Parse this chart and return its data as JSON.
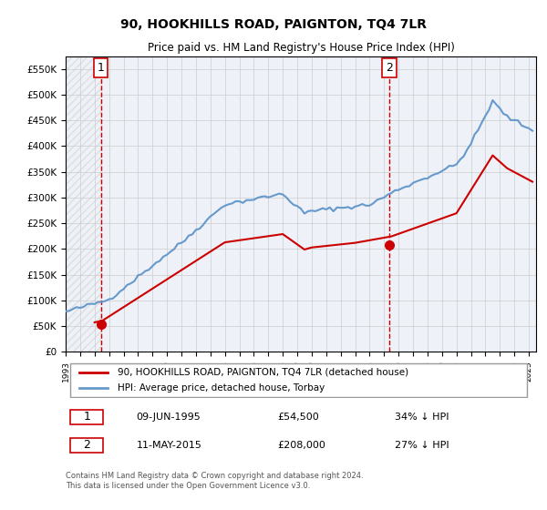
{
  "title": "90, HOOKHILLS ROAD, PAIGNTON, TQ4 7LR",
  "subtitle": "Price paid vs. HM Land Registry's House Price Index (HPI)",
  "legend_line1": "90, HOOKHILLS ROAD, PAIGNTON, TQ4 7LR (detached house)",
  "legend_line2": "HPI: Average price, detached house, Torbay",
  "footnote1": "Contains HM Land Registry data © Crown copyright and database right 2024.",
  "footnote2": "This data is licensed under the Open Government Licence v3.0.",
  "sale1_label": "1",
  "sale1_date": "09-JUN-1995",
  "sale1_price": "£54,500",
  "sale1_hpi": "34% ↓ HPI",
  "sale2_label": "2",
  "sale2_date": "11-MAY-2015",
  "sale2_price": "£208,000",
  "sale2_hpi": "27% ↓ HPI",
  "sale1_x": 1995.44,
  "sale1_y": 54500,
  "sale2_x": 2015.36,
  "sale2_y": 208000,
  "hpi_color": "#6699cc",
  "price_color": "#cc0000",
  "vline_color": "#cc0000",
  "bg_color": "#eef2f8",
  "grid_color": "#cccccc",
  "ylim": [
    0,
    575000
  ],
  "xlim_start": 1993,
  "xlim_end": 2025.5
}
